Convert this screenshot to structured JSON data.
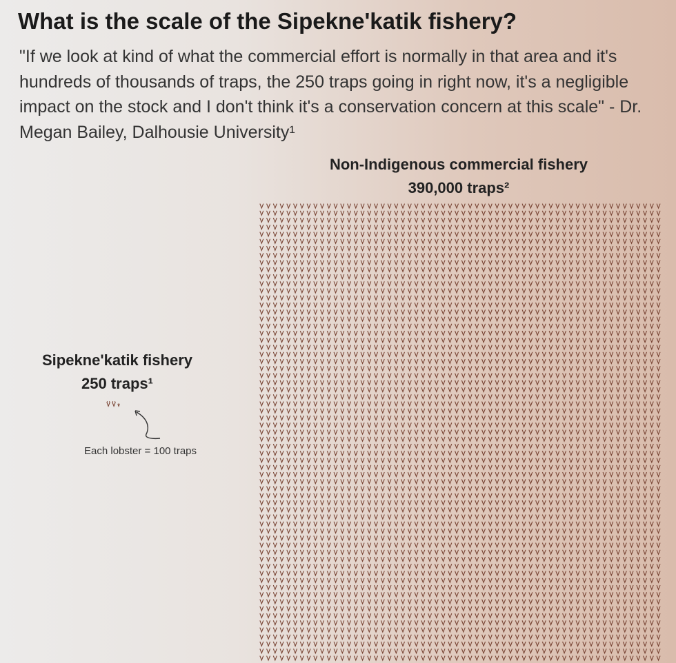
{
  "chart_data": {
    "type": "pictograph",
    "title": "What is the scale of the Sipekne'katik fishery?",
    "subtitle": "\"If we look at kind of what the commercial effort is normally in that area and it's hundreds of thousands of traps, the 250 traps going in right now, it's a negligible impact on the stock and I don't think it's a conservation concern at this scale\" - Dr. Megan Bailey, Dalhousie University¹",
    "categories": [
      "Sipekne'katik fishery",
      "Non-Indigenous commercial fishery"
    ],
    "values": [
      250,
      390000
    ],
    "value_labels": [
      "250 traps¹",
      "390,000 traps²"
    ],
    "unit": {
      "value": 100,
      "label": "Each lobster = 100 traps"
    },
    "color": "#7a4636"
  }
}
